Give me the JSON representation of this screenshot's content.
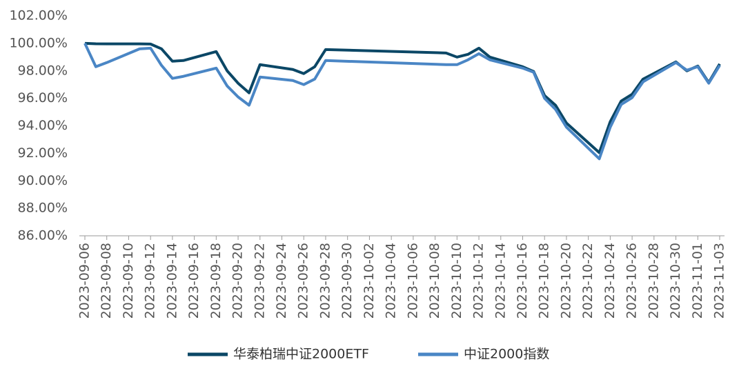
{
  "chart_data": {
    "type": "line",
    "x": [
      "2023-09-06",
      "2023-09-07",
      "2023-09-08",
      "2023-09-11",
      "2023-09-12",
      "2023-09-13",
      "2023-09-14",
      "2023-09-15",
      "2023-09-18",
      "2023-09-19",
      "2023-09-20",
      "2023-09-21",
      "2023-09-22",
      "2023-09-25",
      "2023-09-26",
      "2023-09-27",
      "2023-09-28",
      "2023-10-09",
      "2023-10-10",
      "2023-10-11",
      "2023-10-12",
      "2023-10-13",
      "2023-10-16",
      "2023-10-17",
      "2023-10-18",
      "2023-10-19",
      "2023-10-20",
      "2023-10-23",
      "2023-10-24",
      "2023-10-25",
      "2023-10-26",
      "2023-10-27",
      "2023-10-30",
      "2023-10-31",
      "2023-11-01",
      "2023-11-02",
      "2023-11-03"
    ],
    "series": [
      {
        "name": "华泰柏瑞中证2000ETF",
        "color": "#0b4766",
        "values": [
          100,
          99.97,
          99.96,
          99.96,
          99.95,
          99.6,
          98.7,
          98.75,
          99.4,
          98.0,
          97.1,
          96.4,
          98.45,
          98.1,
          97.8,
          98.3,
          99.55,
          99.3,
          99.0,
          99.2,
          99.65,
          99.0,
          98.3,
          97.95,
          96.2,
          95.5,
          94.2,
          92.05,
          94.3,
          95.8,
          96.3,
          97.4,
          98.65,
          98.0,
          98.35,
          97.15,
          98.5
        ]
      },
      {
        "name": "中证2000指数",
        "color": "#4a86c5",
        "values": [
          100,
          98.3,
          98.6,
          99.6,
          99.65,
          98.4,
          97.45,
          97.6,
          98.2,
          96.9,
          96.1,
          95.5,
          97.55,
          97.3,
          97.0,
          97.4,
          98.75,
          98.45,
          98.45,
          98.8,
          99.25,
          98.8,
          98.2,
          97.9,
          96.0,
          95.2,
          93.9,
          91.6,
          93.9,
          95.55,
          96.05,
          97.2,
          98.6,
          98.05,
          98.3,
          97.1,
          98.4
        ]
      }
    ],
    "xlim": [
      "2023-09-06",
      "2023-11-03"
    ],
    "xticks": [
      "2023-09-06",
      "2023-09-08",
      "2023-09-10",
      "2023-09-12",
      "2023-09-14",
      "2023-09-16",
      "2023-09-18",
      "2023-09-20",
      "2023-09-22",
      "2023-09-24",
      "2023-09-26",
      "2023-09-28",
      "2023-09-30",
      "2023-10-02",
      "2023-10-04",
      "2023-10-06",
      "2023-10-08",
      "2023-10-10",
      "2023-10-12",
      "2023-10-14",
      "2023-10-16",
      "2023-10-18",
      "2023-10-20",
      "2023-10-22",
      "2023-10-24",
      "2023-10-26",
      "2023-10-28",
      "2023-10-30",
      "2023-11-01",
      "2023-11-03"
    ],
    "ylim": [
      86,
      102
    ],
    "yticks": [
      {
        "value": 86,
        "label": "86.00%"
      },
      {
        "value": 88,
        "label": "88.00%"
      },
      {
        "value": 90,
        "label": "90.00%"
      },
      {
        "value": 92,
        "label": "92.00%"
      },
      {
        "value": 94,
        "label": "94.00%"
      },
      {
        "value": 96,
        "label": "96.00%"
      },
      {
        "value": 98,
        "label": "98.00%"
      },
      {
        "value": 100,
        "label": "100.00%"
      },
      {
        "value": 102,
        "label": "102.00%"
      }
    ],
    "grid": false,
    "legend": "bottom"
  }
}
